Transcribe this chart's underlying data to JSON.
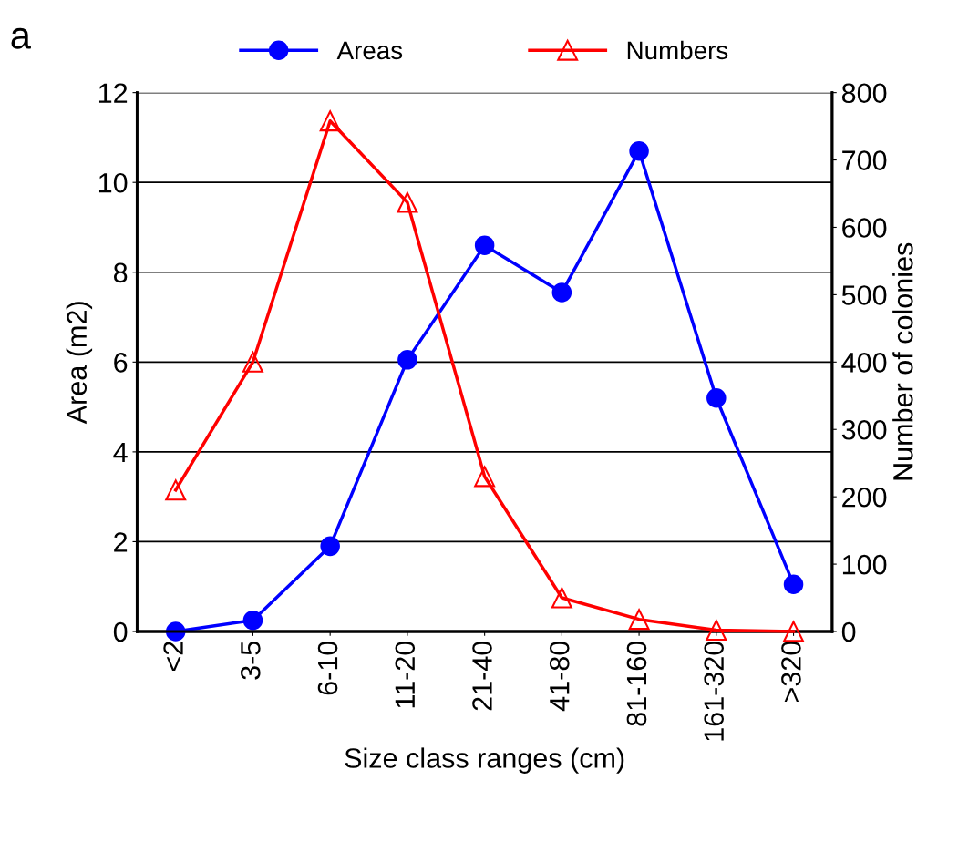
{
  "chart_data": {
    "type": "line",
    "xlabel": "Size class ranges (cm)",
    "ylabel": "Area (m2)",
    "y2label": "Number of colonies",
    "annotations": [
      "a"
    ],
    "categories": [
      "<2",
      "3-5",
      "6-10",
      "11-20",
      "21-40",
      "41-80",
      "81-160",
      "161-320",
      ">320"
    ],
    "series": [
      {
        "name": "Areas",
        "color": "#0000ff",
        "marker": "circle",
        "values": [
          0.0,
          0.25,
          1.9,
          6.05,
          8.6,
          7.55,
          10.7,
          5.2,
          1.05
        ]
      },
      {
        "name": "Numbers",
        "color": "#ff0000",
        "marker": "triangle",
        "axis": "y2",
        "values": [
          210,
          400,
          758,
          637,
          230,
          50,
          18,
          2,
          0
        ]
      }
    ],
    "ylim": [
      0,
      12
    ],
    "yticks": [
      0,
      2,
      4,
      6,
      8,
      10,
      12
    ],
    "y2lim": [
      0,
      800
    ],
    "y2ticks": [
      0,
      100,
      200,
      300,
      400,
      500,
      600,
      700,
      800
    ],
    "grid": "y",
    "legend": "top",
    "line_style": "solid"
  }
}
